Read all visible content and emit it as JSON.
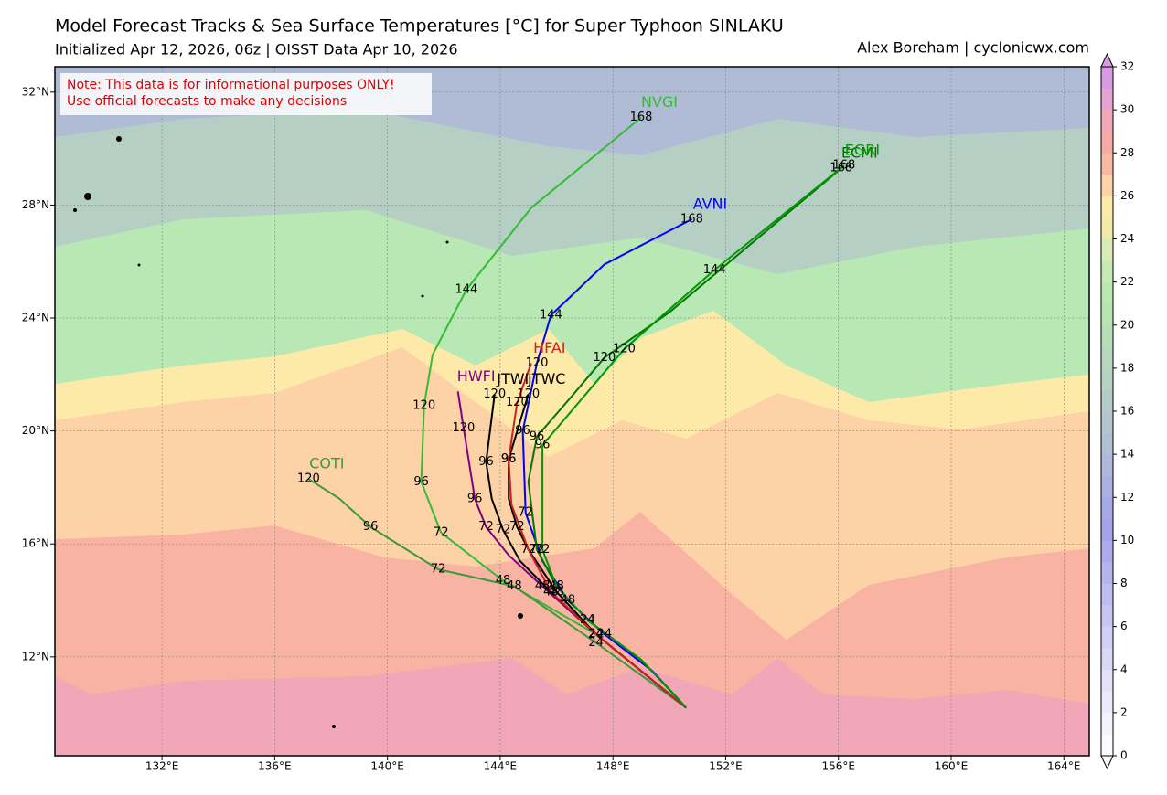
{
  "chart_data": {
    "type": "track",
    "title": "Model Forecast Tracks & Sea Surface Temperatures [°C] for Super Typhoon SINLAKU",
    "subtitle": "Initialized Apr 12, 2026, 06z | OISST Data Apr 10, 2026",
    "credit": "Alex Boreham | cyclonicwx.com",
    "note": [
      "Note: This data is for informational purposes ONLY!",
      "Use official forecasts to make any decisions"
    ],
    "xlim": [
      128.2,
      164.9
    ],
    "ylim": [
      8.5,
      32.9
    ],
    "xticks": [
      {
        "value": 132,
        "label": "132°E"
      },
      {
        "value": 136,
        "label": "136°E"
      },
      {
        "value": 140,
        "label": "140°E"
      },
      {
        "value": 144,
        "label": "144°E"
      },
      {
        "value": 148,
        "label": "148°E"
      },
      {
        "value": 152,
        "label": "152°E"
      },
      {
        "value": 156,
        "label": "156°E"
      },
      {
        "value": 160,
        "label": "160°E"
      },
      {
        "value": 164,
        "label": "164°E"
      }
    ],
    "yticks": [
      {
        "value": 12,
        "label": "12°N"
      },
      {
        "value": 16,
        "label": "16°N"
      },
      {
        "value": 20,
        "label": "20°N"
      },
      {
        "value": 24,
        "label": "24°N"
      },
      {
        "value": 28,
        "label": "28°N"
      },
      {
        "value": 32,
        "label": "32°N"
      }
    ],
    "grid": true,
    "colorbar": {
      "ticks": [
        0,
        2,
        4,
        6,
        8,
        10,
        12,
        14,
        16,
        18,
        20,
        22,
        24,
        26,
        28,
        30,
        32
      ],
      "colors": [
        "#fbfbfe",
        "#f3f3fc",
        "#ebeafa",
        "#e2e1f8",
        "#d9d8f6",
        "#d0cff4",
        "#c7c6f2",
        "#bebdf0",
        "#b5b4ee",
        "#acabec",
        "#a3a2ea",
        "#a6a8e6",
        "#aab0e0",
        "#adb8da",
        "#b0c0d4",
        "#b3c6cf",
        "#b4ccc9",
        "#b5d2c3",
        "#b6d8bd",
        "#b7deb7",
        "#b8e4b2",
        "#b9e8b0",
        "#c6eab2",
        "#d8ecb4",
        "#f3eaa8",
        "#fde9a8",
        "#fcd2a6",
        "#f9b9a3",
        "#f7a9a7",
        "#f2a7b8",
        "#e6a2d0",
        "#d89ae0"
      ]
    },
    "series": [
      {
        "name": "NVGI",
        "color": "#33bb33",
        "x": [
          150.6,
          147.4,
          144.1,
          141.9,
          141.2,
          141.3,
          141.6,
          142.8,
          145.1,
          149.0
        ],
        "y": [
          10.2,
          12.8,
          14.7,
          16.4,
          18.2,
          20.9,
          22.7,
          25.0,
          27.9,
          31.1
        ],
        "hours": [
          null,
          null,
          48,
          72,
          96,
          120,
          null,
          144,
          null,
          168
        ]
      },
      {
        "name": "COTI",
        "color": "#3a9a3a",
        "x": [
          150.6,
          147.4,
          144.5,
          141.8,
          139.4,
          138.3,
          137.2
        ],
        "y": [
          10.2,
          12.5,
          14.5,
          15.1,
          16.6,
          17.6,
          18.3
        ],
        "hours": [
          null,
          24,
          48,
          72,
          96,
          null,
          120
        ]
      },
      {
        "name": "HWFI",
        "color": "#800080",
        "x": [
          150.6,
          147.4,
          145.5,
          144.3,
          143.5,
          143.1,
          142.7,
          142.5
        ],
        "y": [
          10.2,
          12.8,
          14.5,
          15.6,
          16.6,
          17.6,
          20.1,
          21.4
        ],
        "hours": [
          null,
          24,
          48,
          null,
          72,
          96,
          120,
          null
        ]
      },
      {
        "name": "JTWI",
        "color": "#000000",
        "x": [
          150.6,
          147.4,
          145.8,
          144.7,
          144.1,
          143.7,
          143.5,
          143.8
        ],
        "y": [
          10.2,
          12.8,
          14.3,
          15.4,
          16.5,
          17.6,
          18.9,
          21.3
        ],
        "hours": [
          null,
          24,
          48,
          null,
          72,
          null,
          96,
          120
        ]
      },
      {
        "name": "JTWC",
        "color": "#000000",
        "x": [
          150.6,
          147.4,
          146.0,
          145.0,
          144.6,
          144.3,
          144.3,
          145.0
        ],
        "y": [
          10.2,
          12.8,
          14.3,
          15.8,
          16.6,
          17.6,
          19.0,
          21.3
        ],
        "hours": [
          null,
          24,
          48,
          null,
          72,
          null,
          96,
          120
        ]
      },
      {
        "name": "HFAI",
        "color": "#cc2222",
        "x": [
          150.6,
          147.4,
          145.8,
          145.0,
          144.4,
          144.3,
          144.6,
          145.1
        ],
        "y": [
          10.2,
          12.8,
          14.3,
          15.8,
          17.4,
          19.0,
          21.0,
          22.4
        ],
        "hours": [
          null,
          24,
          48,
          72,
          null,
          96,
          120,
          null
        ]
      },
      {
        "name": "AVNI",
        "color": "#0000ff",
        "x": [
          150.6,
          149.4,
          147.7,
          146.4,
          145.5,
          144.9,
          144.8,
          145.3,
          145.8,
          147.7,
          150.8
        ],
        "y": [
          10.2,
          11.5,
          12.8,
          14.0,
          15.4,
          17.1,
          20.0,
          22.4,
          24.1,
          25.9,
          27.5
        ],
        "hours": [
          null,
          null,
          24,
          48,
          null,
          72,
          96,
          120,
          144,
          null,
          168
        ]
      },
      {
        "name": "ECMI",
        "color": "#007700",
        "x": [
          150.6,
          149.0,
          147.1,
          146.0,
          145.3,
          145.0,
          145.3,
          146.6,
          147.7,
          150.0,
          156.1
        ],
        "y": [
          10.2,
          11.9,
          13.3,
          14.5,
          15.8,
          18.2,
          19.8,
          21.3,
          22.6,
          24.2,
          29.3
        ],
        "hours": [
          null,
          null,
          24,
          48,
          72,
          null,
          96,
          null,
          120,
          null,
          168
        ]
      },
      {
        "name": "EGRI",
        "color": "#009900",
        "x": [
          150.6,
          149.0,
          147.1,
          146.0,
          145.5,
          145.5,
          148.4,
          151.6,
          156.2
        ],
        "y": [
          10.2,
          11.9,
          13.3,
          14.5,
          15.8,
          19.5,
          22.9,
          25.7,
          29.4
        ],
        "hours": [
          null,
          null,
          24,
          48,
          72,
          96,
          120,
          144,
          168
        ]
      }
    ]
  }
}
